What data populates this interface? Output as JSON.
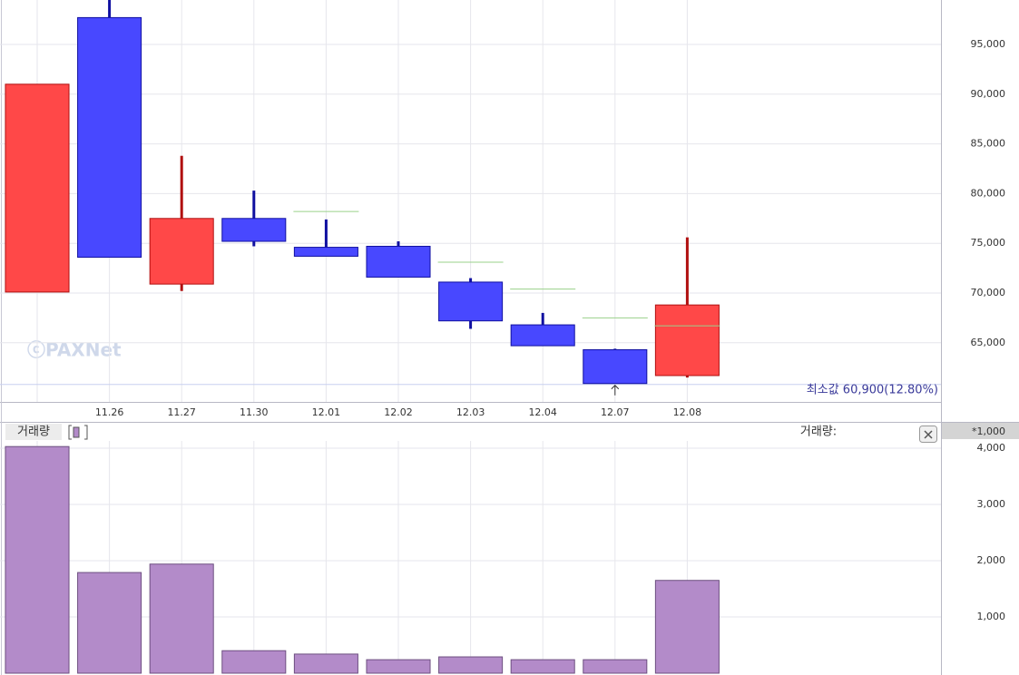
{
  "chart_data": [
    {
      "type": "candlestick",
      "categories": [
        null,
        "11.26",
        "11.27",
        "11.30",
        "12.01",
        "12.02",
        "12.03",
        "12.04",
        "12.07",
        "12.08"
      ],
      "open": [
        70100,
        97700,
        70900,
        77500,
        74600,
        74700,
        71100,
        66800,
        64300,
        61700
      ],
      "high": [
        91000,
        99800,
        83800,
        80300,
        77400,
        75200,
        71500,
        68000,
        64400,
        75600
      ],
      "low": [
        70100,
        73600,
        70200,
        74700,
        73700,
        71600,
        66400,
        64700,
        60900,
        61500
      ],
      "close": [
        91000,
        73600,
        77500,
        75200,
        73700,
        71600,
        67200,
        64700,
        60900,
        68800
      ],
      "marker_values": [
        null,
        null,
        null,
        null,
        78200,
        null,
        73100,
        70400,
        67500,
        66700
      ],
      "up_color": "#ff4848",
      "down_color": "#4848ff",
      "marker_color": "#9ad08a",
      "ylim": [
        59050,
        99470
      ],
      "yticks": [
        {
          "value": 65000,
          "label": "65,000"
        },
        {
          "value": 70000,
          "label": "70,000"
        },
        {
          "value": 75000,
          "label": "75,000"
        },
        {
          "value": 80000,
          "label": "80,000"
        },
        {
          "value": 85000,
          "label": "85,000"
        },
        {
          "value": 90000,
          "label": "90,000"
        },
        {
          "value": 95000,
          "label": "95,000"
        }
      ],
      "grid": true,
      "min_value": 60900,
      "annotation": "최소값 60,900(12.80%)",
      "watermark": "ⓒPAXNet"
    },
    {
      "type": "bar",
      "title": "거래량",
      "readout_label": "거래량:",
      "unit_label": "*1,000",
      "series": [
        {
          "name": "거래량",
          "color": "#b38bc9",
          "values": [
            4030,
            1790,
            1940,
            400,
            340,
            240,
            290,
            240,
            240,
            1650
          ]
        }
      ],
      "ylim": [
        0,
        4130
      ],
      "yticks": [
        {
          "value": 1000,
          "label": "1,000"
        },
        {
          "value": 2000,
          "label": "2,000"
        },
        {
          "value": 3000,
          "label": "3,000"
        },
        {
          "value": 4000,
          "label": "4,000"
        }
      ],
      "grid": true
    }
  ]
}
